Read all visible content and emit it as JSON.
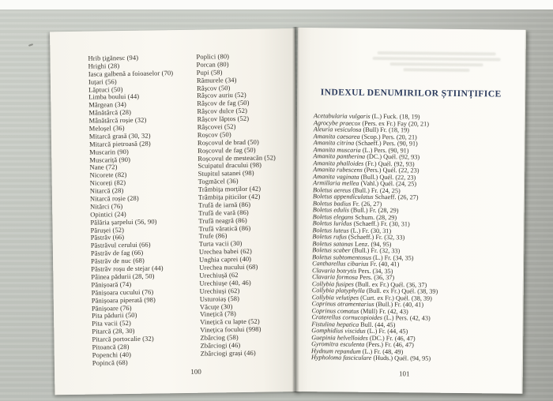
{
  "colors": {
    "background_gray": "#c6cac3",
    "paper": "#faf8f2",
    "ink": "#34312a",
    "title_navy": "#2d3c5e",
    "bottom_edge_dark": "#22241f"
  },
  "left_page": {
    "page_number": "100",
    "column1": [
      "Hrib țigănesc (94)",
      "Hrighi (28)",
      "Iasca galbenă a foioaselor (70)",
      "Iuțari (56)",
      "Lăptuci (50)",
      "Limba boului (44)",
      "Mărgean (34)",
      "Mânătârcă (28)",
      "Mânătârcă roșie (32)",
      "Meloșel (36)",
      "Mitarcă grasă (30, 32)",
      "Mitarcă pietroasă (28)",
      "Muscarin (90)",
      "Muscariță (90)",
      "Nane (72)",
      "Nicorete (82)",
      "Nicoreți (82)",
      "Nitarcă (28)",
      "Nitarcă roșie (28)",
      "Nitărci (76)",
      "Opintici (24)",
      "Pălăria șarpelui (56, 90)",
      "Părușei (52)",
      "Păstrăv (66)",
      "Păstrăvul cerului (66)",
      "Păstrăv de fag (66)",
      "Păstrăv de nuc (68)",
      "Păstrăv roșu de stejar (44)",
      "Pâinea pădurii (28, 50)",
      "Pănișoară (74)",
      "Pănișoara cucului (76)",
      "Pănișoara piperată (98)",
      "Pănișoare (76)",
      "Pita pădurii (50)",
      "Pita vacii (52)",
      "Pitarcă (28, 30)",
      "Pitarcă portocalie (32)",
      "Pitoancă (28)",
      "Popenchi (40)",
      "Popincă (68)"
    ],
    "column2": [
      "Poplici (80)",
      "Porcan (80)",
      "Pupi (58)",
      "Rămurele (34)",
      "Râșcov (50)",
      "Râșcov auriu (52)",
      "Râșcov de fag (50)",
      "Râșcov dulce (52)",
      "Râșcov lăptos (52)",
      "Râșcovei (52)",
      "Roșcov (50)",
      "Roșcovul de brad (50)",
      "Roșcovul de fag (50)",
      "Roșcovul de mesteacăn (52)",
      "Scuipatul dracului (98)",
      "Stupitul satanei (98)",
      "Togmăcel (36)",
      "Trâmbița morților (42)",
      "Trâmbița piticilor (42)",
      "Trufă de iarnă (86)",
      "Trufă de vară (86)",
      "Trufă neagră (86)",
      "Trufă văratică (86)",
      "Trufe (86)",
      "Turta vacii (30)",
      "Urechea babei (62)",
      "Unghia caprei (40)",
      "Urechea nucului (68)",
      "Urechiușă (62",
      "Urechiușe (40, 46)",
      "Urechiuși (62)",
      "Usturoiaș (58)",
      "Văcuțe (30)",
      "Vinețică (78)",
      "Vinețică cu lapte (52)",
      "Vinețica focului (998)",
      "Zbârciog (58)",
      "Zbârciogi (46)",
      "Zbârciogi grași (46)"
    ]
  },
  "right_page": {
    "page_number": "101",
    "title": "INDEXUL DENUMIRILOR ȘTIINȚIFICE",
    "entries": [
      {
        "n": "Acetabularia vulgaris",
        "r": "(L.) Fuck. (18, 19)"
      },
      {
        "n": "Agrocybe praecox",
        "r": "(Pers. ex Fr.) Fay (20, 21)"
      },
      {
        "n": "Aleuria vesiculosa",
        "r": "(Bull) Fr. (18, 19)"
      },
      {
        "n": "Amanita caesarea",
        "r": "(Scop.) Pers. (20, 21)"
      },
      {
        "n": "Amanita citrina",
        "r": "(Schaeff.) Pers. (90, 91)"
      },
      {
        "n": "Amanita muscaria",
        "r": "(L.) Pers. (90, 91)"
      },
      {
        "n": "Amanita pantherina",
        "r": "(DC.) Quél. (92, 93)"
      },
      {
        "n": "Amanita phalloides",
        "r": "(Fr.) Quél. (92, 93)"
      },
      {
        "n": "Amanita rubescens",
        "r": "(Pers.) Quél. (22, 23)"
      },
      {
        "n": "Amanita vaginata",
        "r": "(Bull.) Quél. (22, 23)"
      },
      {
        "n": "Armillaria mellea",
        "r": "(Vahl.) Quél. (24, 25)"
      },
      {
        "n": "Boletus aereus",
        "r": "(Bull.) Fr. (24, 25)"
      },
      {
        "n": "Boletus appendiculatus",
        "r": "Schaeff. (26, 27)"
      },
      {
        "n": "Boletus badius",
        "r": "Fr. (26, 27)"
      },
      {
        "n": "Boletus edulis",
        "r": "(Bull.) Fr. (28, 29)"
      },
      {
        "n": "Boletus elegans",
        "r": "Schum. (28, 29)"
      },
      {
        "n": "Boletus luridus",
        "r": "(Schaeff.) Fr. (30, 31)"
      },
      {
        "n": "Boletus luteus",
        "r": "(L.) Fr. (30, 31)"
      },
      {
        "n": "Boletus rufus",
        "r": "(Schaeff.) Fr. (32, 33)"
      },
      {
        "n": "Boletus satanas",
        "r": "Lenz. (94, 95)"
      },
      {
        "n": "Boletus scaber",
        "r": "(Bull.) Fr. (32, 33)"
      },
      {
        "n": "Boletus subtomentosus",
        "r": "(L.) Fr. (34, 35)"
      },
      {
        "n": "Cantharellus cibarius",
        "r": "Fr. (40, 41)"
      },
      {
        "n": "Clavaria botrytis",
        "r": "Pers. (34, 35)"
      },
      {
        "n": "Clavaria formosa",
        "r": "Pers. (36, 37)"
      },
      {
        "n": "Collybia fusipes",
        "r": "(Bull. ex Fr.) Quél. (36, 37)"
      },
      {
        "n": "Collybia platyphylla",
        "r": "(Bull. ex Fr.) Quél. (38, 39)"
      },
      {
        "n": "Collybia velutipes",
        "r": "(Curt. ex Fr.) Quél. (38, 39)"
      },
      {
        "n": "Coprinus atramentarius",
        "r": "(Bull.) Fr. (40, 41)"
      },
      {
        "n": "Coprinus comatus",
        "r": "(Müll) Fr. (42, 43)"
      },
      {
        "n": "Craterellus cornucopioides",
        "r": "(L.) Pers. (42, 43)"
      },
      {
        "n": "Fistulina hepatica",
        "r": "Bull. (44, 45)"
      },
      {
        "n": "Gomphidius viscidus",
        "r": "(L.) Fr. (44, 45)"
      },
      {
        "n": "Guepinia helvelloides",
        "r": "(DC.) Fr. (46, 47)"
      },
      {
        "n": "Gyromitra esculenta",
        "r": "(Pers.) Fr. (46, 47)"
      },
      {
        "n": "Hydnum repandum",
        "r": "(L.) Fr. (48, 49)"
      },
      {
        "n": "Hypholoma fasciculare",
        "r": "(Huds.) Quél. (94, 95)"
      }
    ]
  }
}
